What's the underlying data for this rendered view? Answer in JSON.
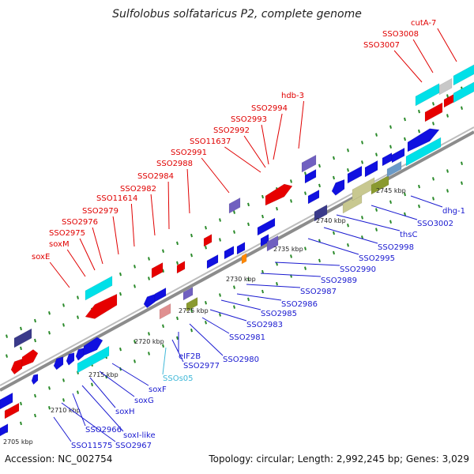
{
  "title": "Sulfolobus solfataricus P2, complete genome",
  "footer": {
    "accession": "Accession: NC_002754",
    "topology": "Topology: circular; Length: 2,992,245 bp; Genes: 3,029"
  },
  "colors": {
    "backbone": "#7a7a7a",
    "label_top": "#e00000",
    "label_bottom": "#1a1ad0",
    "label_rna": "#3fb8d8",
    "tick": "#2a8a2a"
  },
  "ticks": [
    "2705 kbp",
    "2710 kbp",
    "2715 kbp",
    "2720 kbp",
    "2725 kbp",
    "2730 kbp",
    "2735 kbp",
    "2740 kbp",
    "2745 kbp"
  ],
  "top_labels": [
    "soxE",
    "soxM",
    "SSO2975",
    "SSO2976",
    "SSO2979",
    "SSO11614",
    "SSO2982",
    "SSO2984",
    "SSO2988",
    "SSO2991",
    "SSO11637",
    "SSO2992",
    "SSO2993",
    "SSO2994",
    "hdb-3",
    "SSO3007",
    "SSO3008",
    "cutA-7"
  ],
  "bottom_labels": [
    "SSO11575",
    "SSO2967",
    "SSO2966",
    "soxI-like",
    "soxH",
    "soxG",
    "soxF",
    "SSOs05",
    "SSO2977",
    "eIF2B",
    "SSO2980",
    "SSO2981",
    "SSO2983",
    "SSO2985",
    "SSO2986",
    "SSO2987",
    "SSO2989",
    "SSO2990",
    "SSO2995",
    "SSO2998",
    "thsC",
    "SSO3002",
    "dhg-1"
  ]
}
